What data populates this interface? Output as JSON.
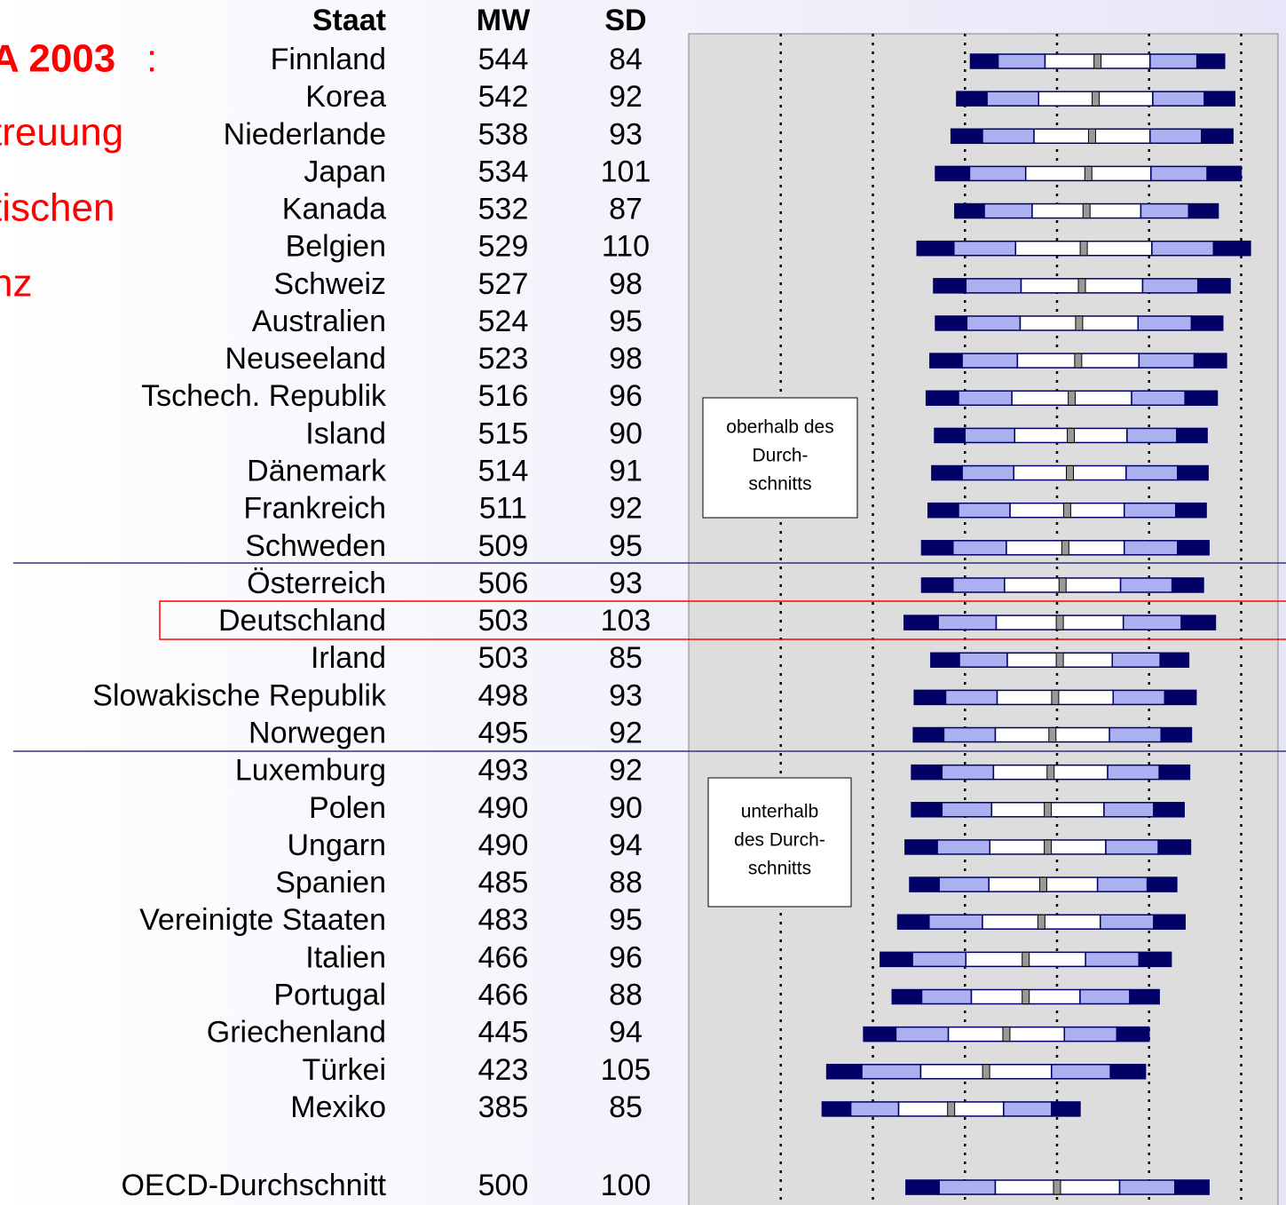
{
  "chart_data": {
    "type": "percentile",
    "title_lines": [
      "A 2003",
      ":",
      "treuung",
      "tischen",
      "nz"
    ],
    "headers": {
      "country": "Staat",
      "mean": "MW",
      "sd": "SD"
    },
    "categories": [
      "Finnland",
      "Korea",
      "Niederlande",
      "Japan",
      "Kanada",
      "Belgien",
      "Schweiz",
      "Australien",
      "Neuseeland",
      "Tschech. Republik",
      "Island",
      "Dänemark",
      "Frankreich",
      "Schweden",
      "Österreich",
      "Deutschland",
      "Irland",
      "Slowakische Republik",
      "Norwegen",
      "Luxemburg",
      "Polen",
      "Ungarn",
      "Spanien",
      "Vereinigte Staaten",
      "Italien",
      "Portugal",
      "Griechenland",
      "Türkei",
      "Mexiko",
      "OECD-Durchschnitt"
    ],
    "mean": [
      544,
      542,
      538,
      534,
      532,
      529,
      527,
      524,
      523,
      516,
      515,
      514,
      511,
      509,
      506,
      503,
      503,
      498,
      495,
      493,
      490,
      490,
      485,
      483,
      466,
      466,
      445,
      423,
      385,
      500
    ],
    "sd": [
      84,
      92,
      93,
      101,
      87,
      110,
      98,
      95,
      98,
      96,
      90,
      91,
      92,
      95,
      93,
      103,
      85,
      93,
      92,
      92,
      90,
      94,
      88,
      95,
      96,
      88,
      94,
      105,
      85,
      100
    ],
    "percentiles": [
      [
        406,
        436,
        487,
        601,
        652,
        682
      ],
      [
        391,
        424,
        480,
        604,
        660,
        693
      ],
      [
        385,
        419,
        475,
        601,
        657,
        691
      ],
      [
        368,
        405,
        466,
        602,
        663,
        700
      ],
      [
        389,
        421,
        473,
        591,
        643,
        675
      ],
      [
        348,
        388,
        455,
        603,
        670,
        710
      ],
      [
        366,
        401,
        461,
        593,
        653,
        688
      ],
      [
        368,
        402,
        460,
        588,
        646,
        680
      ],
      [
        362,
        397,
        457,
        589,
        649,
        684
      ],
      [
        358,
        393,
        451,
        581,
        639,
        674
      ],
      [
        367,
        400,
        454,
        576,
        630,
        663
      ],
      [
        364,
        397,
        453,
        575,
        631,
        664
      ],
      [
        360,
        393,
        449,
        573,
        629,
        662
      ],
      [
        353,
        387,
        445,
        573,
        631,
        665
      ],
      [
        353,
        387,
        443,
        569,
        625,
        659
      ],
      [
        334,
        371,
        434,
        572,
        635,
        672
      ],
      [
        363,
        394,
        446,
        560,
        612,
        643
      ],
      [
        345,
        379,
        435,
        561,
        617,
        651
      ],
      [
        344,
        377,
        433,
        557,
        613,
        646
      ],
      [
        342,
        375,
        431,
        555,
        611,
        644
      ],
      [
        342,
        375,
        429,
        551,
        605,
        638
      ],
      [
        335,
        370,
        427,
        553,
        610,
        645
      ],
      [
        340,
        372,
        426,
        544,
        598,
        630
      ],
      [
        327,
        361,
        419,
        547,
        605,
        639
      ],
      [
        308,
        343,
        401,
        531,
        589,
        624
      ],
      [
        321,
        353,
        407,
        525,
        579,
        611
      ],
      [
        290,
        325,
        382,
        508,
        565,
        600
      ],
      [
        250,
        288,
        352,
        494,
        558,
        596
      ],
      [
        245,
        276,
        328,
        442,
        494,
        525
      ],
      [
        336,
        372,
        433,
        568,
        628,
        665
      ]
    ],
    "xlim": [
      100,
      740
    ],
    "xticks": [
      200,
      300,
      400,
      500,
      600,
      700
    ],
    "grid": true,
    "colors": {
      "outer": "#000066",
      "middle": "#aab0f0",
      "inner": "#ffffff",
      "mean": "#999999"
    },
    "notes": [
      [
        "oberhalb des",
        "Durch-",
        "schnitts"
      ],
      [
        "unterhalb",
        "des  Durch-",
        "schnitts"
      ]
    ]
  }
}
